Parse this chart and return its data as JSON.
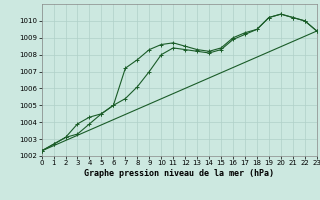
{
  "title": "Graphe pression niveau de la mer (hPa)",
  "bg_color": "#cce8e0",
  "grid_color": "#b0d0c8",
  "line_color": "#1a5c28",
  "xlim": [
    0,
    23
  ],
  "ylim": [
    1002,
    1011
  ],
  "xticks": [
    0,
    1,
    2,
    3,
    4,
    5,
    6,
    7,
    8,
    9,
    10,
    11,
    12,
    13,
    14,
    15,
    16,
    17,
    18,
    19,
    20,
    21,
    22,
    23
  ],
  "yticks": [
    1002,
    1003,
    1004,
    1005,
    1006,
    1007,
    1008,
    1009,
    1010
  ],
  "series1_x": [
    0,
    1,
    2,
    3,
    4,
    5,
    6,
    7,
    8,
    9,
    10,
    11,
    12,
    13,
    14,
    15,
    16,
    17,
    18,
    19,
    20,
    21,
    22,
    23
  ],
  "series1_y": [
    1002.3,
    1002.7,
    1003.1,
    1003.3,
    1003.9,
    1004.5,
    1005.0,
    1007.2,
    1007.7,
    1008.3,
    1008.6,
    1008.7,
    1008.5,
    1008.3,
    1008.2,
    1008.4,
    1009.0,
    1009.3,
    1009.5,
    1010.2,
    1010.4,
    1010.2,
    1010.0,
    1009.4
  ],
  "series2_x": [
    0,
    1,
    2,
    3,
    4,
    5,
    6,
    7,
    8,
    9,
    10,
    11,
    12,
    13,
    14,
    15,
    16,
    17,
    18,
    19,
    20,
    21,
    22,
    23
  ],
  "series2_y": [
    1002.3,
    1002.7,
    1003.1,
    1003.9,
    1004.3,
    1004.5,
    1005.0,
    1005.4,
    1006.1,
    1007.0,
    1008.0,
    1008.4,
    1008.3,
    1008.2,
    1008.1,
    1008.3,
    1008.9,
    1009.2,
    1009.5,
    1010.2,
    1010.4,
    1010.2,
    1010.0,
    1009.4
  ],
  "series3_x": [
    0,
    23
  ],
  "series3_y": [
    1002.3,
    1009.4
  ],
  "xlabel_fontsize": 6,
  "tick_fontsize": 5,
  "linewidth": 0.8,
  "markersize": 3.0
}
